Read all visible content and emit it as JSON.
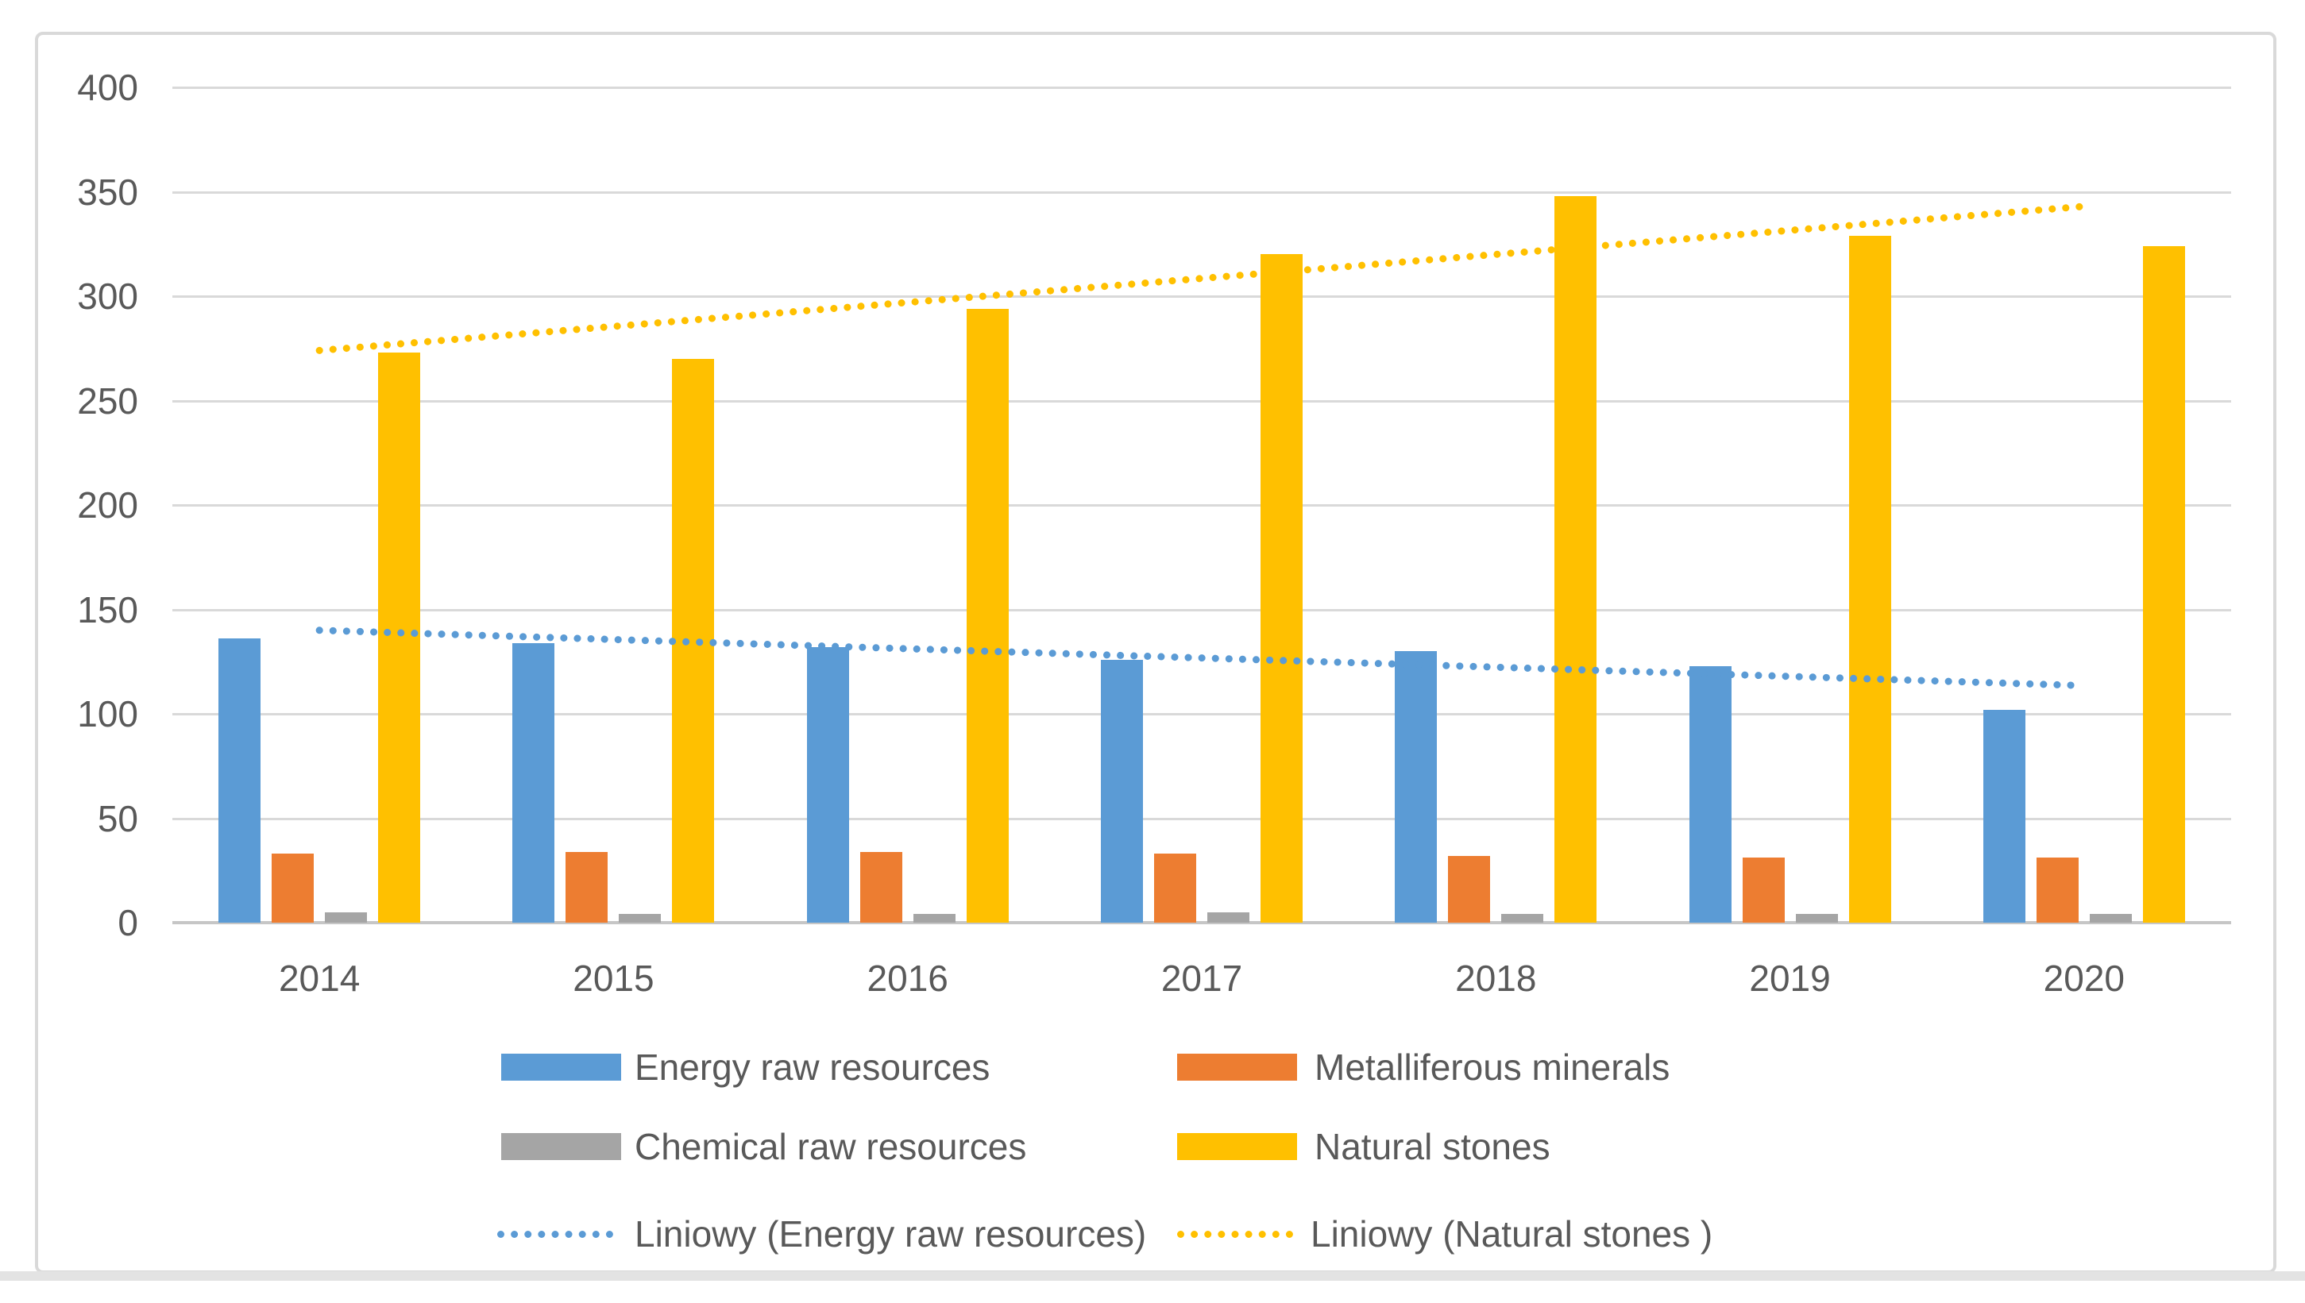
{
  "chart_data": {
    "type": "bar",
    "title": "",
    "xlabel": "",
    "ylabel": "",
    "categories": [
      "2014",
      "2015",
      "2016",
      "2017",
      "2018",
      "2019",
      "2020"
    ],
    "series": [
      {
        "name": "Energy raw resources",
        "color": "#5B9BD5",
        "values": [
          136,
          134,
          132,
          126,
          130,
          123,
          102
        ]
      },
      {
        "name": "Metalliferous minerals",
        "color": "#ED7D31",
        "values": [
          33,
          34,
          34,
          33,
          32,
          31,
          31
        ]
      },
      {
        "name": "Chemical raw resources",
        "color": "#A5A5A5",
        "values": [
          5,
          4,
          4,
          5,
          4,
          4,
          4
        ]
      },
      {
        "name": "Natural stones",
        "color": "#FFC000",
        "values": [
          273,
          270,
          294,
          320,
          348,
          329,
          324
        ]
      }
    ],
    "trendlines": [
      {
        "name": "Liniowy (Energy raw resources)",
        "color": "#5B9BD5",
        "start_value": 140,
        "end_value": 113.5
      },
      {
        "name": "Liniowy (Natural stones )",
        "color": "#FFC000",
        "start_value": 274,
        "end_value": 343
      }
    ],
    "y_axis": {
      "min": 0,
      "max": 400,
      "step": 50,
      "tick_labels": [
        "400",
        "350",
        "300",
        "250",
        "200",
        "150",
        "100",
        "50",
        "0"
      ]
    },
    "grid": true,
    "legend_position": "bottom",
    "legend_rows": [
      [
        "Energy raw resources",
        "Metalliferous minerals"
      ],
      [
        "Chemical raw resources",
        "Natural stones"
      ],
      [
        "Liniowy (Energy raw resources)",
        "Liniowy (Natural stones )"
      ]
    ]
  },
  "colors": {
    "grid": "#D9D9D9",
    "axis_line": "#C6C6C6",
    "text": "#595959",
    "frame_border": "#D9D9D9",
    "page_strip": "#E3E3E3",
    "background": "#FFFFFF"
  }
}
